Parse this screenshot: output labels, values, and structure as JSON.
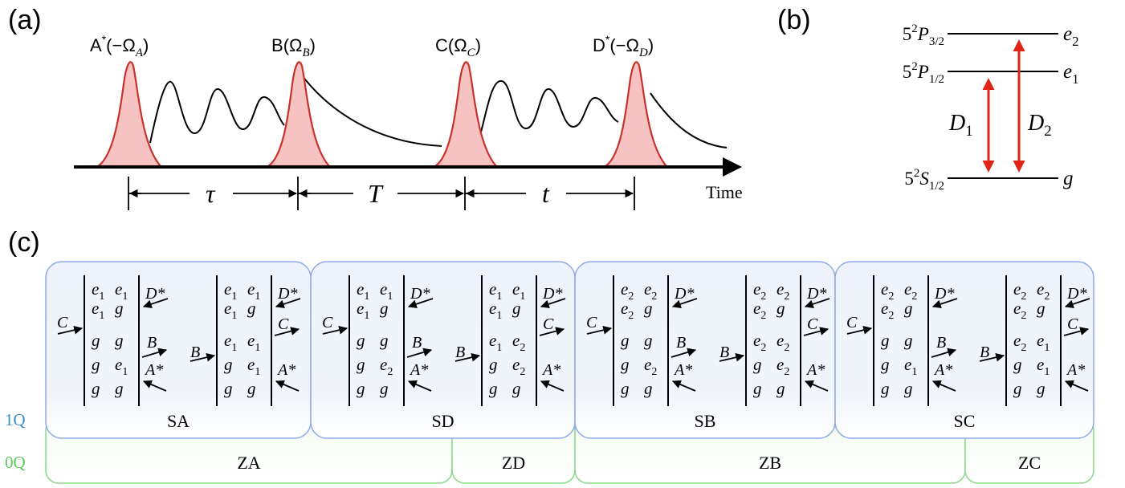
{
  "panels": {
    "a": "(a)",
    "b": "(b)",
    "c": "(c)"
  },
  "pulses": [
    {
      "letter": "A",
      "star": "*",
      "arg": "(−Ω",
      "sub": "A",
      "close": ")"
    },
    {
      "letter": "B",
      "star": "",
      "arg": "(Ω",
      "sub": "B",
      "close": ")"
    },
    {
      "letter": "C",
      "star": "",
      "arg": "(Ω",
      "sub": "C",
      "close": ")"
    },
    {
      "letter": "D",
      "star": "*",
      "arg": "(−Ω",
      "sub": "D",
      "close": ")"
    }
  ],
  "intervals": {
    "tau": "τ",
    "T": "T",
    "t": "t"
  },
  "time_label": "Time",
  "levels": [
    {
      "prefix": "5",
      "sup": "2",
      "term": "P",
      "sub": "3/2",
      "state": "e",
      "state_sub": "2"
    },
    {
      "prefix": "5",
      "sup": "2",
      "term": "P",
      "sub": "1/2",
      "state": "e",
      "state_sub": "1"
    },
    {
      "prefix": "5",
      "sup": "2",
      "term": "S",
      "sub": "1/2",
      "state": "g",
      "state_sub": ""
    }
  ],
  "transitions": [
    {
      "label": "D",
      "sub": "1"
    },
    {
      "label": "D",
      "sub": "2"
    }
  ],
  "row_labels": {
    "one_q": "1Q",
    "zero_q": "0Q"
  },
  "colors": {
    "one_q_label": "#3a8fc7",
    "zero_q_label": "#5cc858",
    "blue_border": "#8fa9e8",
    "green_border": "#8ad88a",
    "pulse_fill": "#f7c2c2",
    "pulse_stroke": "#c8322a",
    "arrow_red": "#e02418"
  },
  "blocks": [
    {
      "name": "SA",
      "left": {
        "rows": [
          [
            "e",
            "1",
            "e",
            "1"
          ],
          [
            "e",
            "1",
            "g",
            ""
          ],
          [
            "g",
            "",
            "g",
            ""
          ],
          [
            "g",
            "",
            "e",
            "1"
          ],
          [
            "g",
            "",
            "g",
            ""
          ]
        ]
      },
      "right": {
        "rows": [
          [
            "e",
            "1",
            "e",
            "1"
          ],
          [
            "e",
            "1",
            "g",
            ""
          ],
          [
            "e",
            "1",
            "e",
            "1"
          ],
          [
            "g",
            "",
            "e",
            "1"
          ],
          [
            "g",
            "",
            "g",
            ""
          ]
        ]
      }
    },
    {
      "name": "SD",
      "left": {
        "rows": [
          [
            "e",
            "1",
            "e",
            "1"
          ],
          [
            "e",
            "1",
            "g",
            ""
          ],
          [
            "g",
            "",
            "g",
            ""
          ],
          [
            "g",
            "",
            "e",
            "2"
          ],
          [
            "g",
            "",
            "g",
            ""
          ]
        ]
      },
      "right": {
        "rows": [
          [
            "e",
            "1",
            "e",
            "1"
          ],
          [
            "e",
            "1",
            "g",
            ""
          ],
          [
            "e",
            "1",
            "e",
            "2"
          ],
          [
            "g",
            "",
            "e",
            "2"
          ],
          [
            "g",
            "",
            "g",
            ""
          ]
        ]
      }
    },
    {
      "name": "SB",
      "left": {
        "rows": [
          [
            "e",
            "2",
            "e",
            "2"
          ],
          [
            "e",
            "2",
            "g",
            ""
          ],
          [
            "g",
            "",
            "g",
            ""
          ],
          [
            "g",
            "",
            "e",
            "2"
          ],
          [
            "g",
            "",
            "g",
            ""
          ]
        ]
      },
      "right": {
        "rows": [
          [
            "e",
            "2",
            "e",
            "2"
          ],
          [
            "e",
            "2",
            "g",
            ""
          ],
          [
            "e",
            "2",
            "e",
            "2"
          ],
          [
            "g",
            "",
            "e",
            "2"
          ],
          [
            "g",
            "",
            "g",
            ""
          ]
        ]
      }
    },
    {
      "name": "SC",
      "left": {
        "rows": [
          [
            "e",
            "2",
            "e",
            "2"
          ],
          [
            "e",
            "2",
            "g",
            ""
          ],
          [
            "g",
            "",
            "g",
            ""
          ],
          [
            "g",
            "",
            "e",
            "1"
          ],
          [
            "g",
            "",
            "g",
            ""
          ]
        ]
      },
      "right": {
        "rows": [
          [
            "e",
            "2",
            "e",
            "2"
          ],
          [
            "e",
            "2",
            "g",
            ""
          ],
          [
            "e",
            "2",
            "e",
            "1"
          ],
          [
            "g",
            "",
            "e",
            "1"
          ],
          [
            "g",
            "",
            "g",
            ""
          ]
        ]
      }
    }
  ],
  "feynman_arrows": {
    "c": "C",
    "b": "B",
    "a": "A*",
    "d": "D*"
  },
  "zero_q_boxes": [
    "ZA",
    "ZD",
    "ZB",
    "ZC"
  ]
}
